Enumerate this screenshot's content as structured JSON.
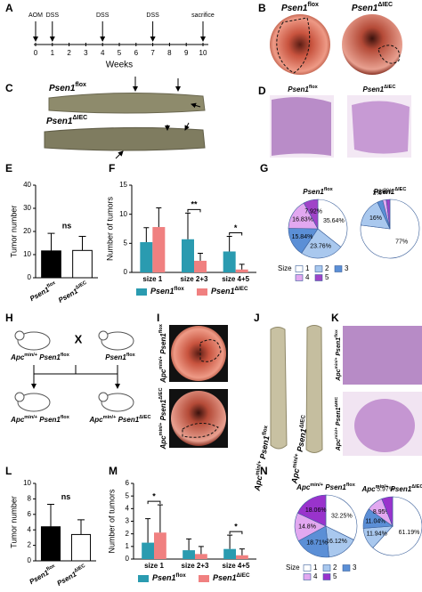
{
  "panel_labels": [
    "A",
    "B",
    "C",
    "D",
    "E",
    "F",
    "G",
    "H",
    "I",
    "J",
    "K",
    "L",
    "M",
    "N"
  ],
  "timeline": {
    "events": [
      {
        "label": "AOM",
        "week": 0
      },
      {
        "label": "DSS",
        "week": 1
      },
      {
        "label": "DSS",
        "week": 4
      },
      {
        "label": "DSS",
        "week": 7
      },
      {
        "label": "sacrifice",
        "week": 10
      }
    ],
    "ticks": [
      0,
      1,
      2,
      3,
      4,
      5,
      6,
      7,
      8,
      9,
      10
    ],
    "xlabel": "Weeks"
  },
  "panel_b": {
    "titles": [
      [
        {
          "t": "Psen1"
        },
        {
          "s": "flox"
        }
      ],
      [
        {
          "t": "Psen1"
        },
        {
          "s": "ΔIEC"
        }
      ]
    ]
  },
  "panel_c": {
    "titles": [
      [
        {
          "t": "Psen1"
        },
        {
          "s": "flox"
        }
      ],
      [
        {
          "t": "Psen1"
        },
        {
          "s": "ΔIEC"
        }
      ]
    ]
  },
  "panel_d": {
    "titles": [
      [
        {
          "t": "Psen1"
        },
        {
          "s": "flox"
        }
      ],
      [
        {
          "t": "Psen1"
        },
        {
          "s": "ΔIEC"
        }
      ]
    ]
  },
  "panel_h": {
    "parent_1": [
      {
        "t": "Apc"
      },
      {
        "s": "min/+"
      },
      {
        "t": " Psen1"
      },
      {
        "s": "flox"
      }
    ],
    "cross": "X",
    "parent_2": [
      {
        "t": "Psen1"
      },
      {
        "s": "flox"
      }
    ],
    "offspring_1": [
      {
        "t": "Apc"
      },
      {
        "s": "min/+"
      },
      {
        "t": " Psen1"
      },
      {
        "s": "flox"
      }
    ],
    "offspring_2": [
      {
        "t": "Apc"
      },
      {
        "s": "min/+"
      },
      {
        "t": " Psen1"
      },
      {
        "s": "ΔIEC"
      }
    ]
  },
  "panel_i": {
    "titles": [
      [
        {
          "t": "Apc"
        },
        {
          "s": "min/+"
        },
        {
          "t": " Psen1"
        },
        {
          "s": "flox"
        }
      ],
      [
        {
          "t": "Apc"
        },
        {
          "s": "min/+"
        },
        {
          "t": " Psen1"
        },
        {
          "s": "ΔIEC"
        }
      ]
    ]
  },
  "panel_j": {
    "titles": [
      [
        {
          "t": "Apc"
        },
        {
          "s": "min/+"
        },
        {
          "t": " Psen1"
        },
        {
          "s": "flox"
        }
      ],
      [
        {
          "t": "Apc"
        },
        {
          "s": "min/+"
        },
        {
          "t": " Psen1"
        },
        {
          "s": "ΔIEC"
        }
      ]
    ]
  },
  "panel_k": {
    "titles": [
      [
        {
          "t": "Apc"
        },
        {
          "s": "min/+"
        },
        {
          "t": " Psen1"
        },
        {
          "s": "flox"
        }
      ],
      [
        {
          "t": "Apc"
        },
        {
          "s": "min/+"
        },
        {
          "t": " Psen1"
        },
        {
          "s": "ΔIEC"
        }
      ]
    ]
  },
  "chart_data": [
    {
      "type": "bar",
      "ylabel": "Tumor number",
      "categories": [
        [
          {
            "t": "Psen1"
          },
          {
            "s": "flox"
          }
        ],
        [
          {
            "t": "Psen1"
          },
          {
            "s": "ΔIEC"
          }
        ]
      ],
      "values": [
        11.6,
        11.8
      ],
      "errors": [
        7.6,
        6.1
      ],
      "colors": [
        "#000000",
        "#ffffff"
      ],
      "ylim": [
        0,
        40
      ],
      "yticks": [
        0,
        10,
        20,
        30,
        40
      ],
      "annotations": [
        "ns"
      ]
    },
    {
      "type": "grouped_bar",
      "ylabel": "Number of tumors",
      "categories": [
        "size 1",
        "size 2+3",
        "size 4+5"
      ],
      "series": [
        {
          "name": [
            {
              "t": "Psen1"
            },
            {
              "s": "flox"
            }
          ],
          "color": "#2a9bb0",
          "values": [
            5.2,
            5.7,
            3.6
          ],
          "errors": [
            2.5,
            4.5,
            2.6
          ]
        },
        {
          "name": [
            {
              "t": "Psen1"
            },
            {
              "s": "ΔIEC"
            }
          ],
          "color": "#f08080",
          "values": [
            7.8,
            2.0,
            0.5
          ],
          "errors": [
            3.3,
            1.3,
            0.9
          ]
        }
      ],
      "ylim": [
        0,
        15
      ],
      "yticks": [
        0,
        5,
        10,
        15
      ],
      "annotations": [
        "**",
        "*"
      ]
    },
    {
      "type": "pie",
      "title": [
        {
          "t": "Psen1"
        },
        {
          "s": "flox"
        }
      ],
      "values": [
        35.64,
        23.76,
        15.84,
        16.83,
        7.92
      ],
      "value_labels": [
        "35.64%",
        "23.76%",
        "15.84%",
        "16.83%",
        "7.92%"
      ],
      "colors": [
        "#ffffff",
        "#a9c8ee",
        "#5b8fd6",
        "#e2a8f0",
        "#a044c8"
      ],
      "legend_title": "Size",
      "categories": [
        "1",
        "2",
        "3",
        "4",
        "5"
      ]
    },
    {
      "type": "pie",
      "title": [
        {
          "t": "Psen1"
        },
        {
          "s": "ΔIEC"
        }
      ],
      "values": [
        77,
        16,
        3,
        2,
        2
      ],
      "value_labels": [
        "77%",
        "16%",
        "3%",
        "2%",
        "2%"
      ],
      "colors": [
        "#ffffff",
        "#a9c8ee",
        "#5b8fd6",
        "#e2a8f0",
        "#a044c8"
      ]
    },
    {
      "type": "bar",
      "ylabel": "Tumor number",
      "categories": [
        [
          {
            "t": "Psen1"
          },
          {
            "s": "flox"
          }
        ],
        [
          {
            "t": "Psen1"
          },
          {
            "s": "ΔIEC"
          }
        ]
      ],
      "values": [
        4.4,
        3.4
      ],
      "errors": [
        2.9,
        1.9
      ],
      "colors": [
        "#000000",
        "#ffffff"
      ],
      "ylim": [
        0,
        10
      ],
      "yticks": [
        0,
        2,
        4,
        6,
        8,
        10
      ],
      "annotations": [
        "ns"
      ]
    },
    {
      "type": "grouped_bar",
      "ylabel": "Number of tumors",
      "categories": [
        "size 1",
        "size 2+3",
        "size 4+5"
      ],
      "series": [
        {
          "name": [
            {
              "t": "Psen1"
            },
            {
              "s": "flox"
            }
          ],
          "color": "#2a9bb0",
          "values": [
            1.3,
            0.7,
            0.8
          ],
          "errors": [
            1.9,
            0.9,
            1.1
          ]
        },
        {
          "name": [
            {
              "t": "Psen1"
            },
            {
              "s": "ΔIEC"
            }
          ],
          "color": "#f08080",
          "values": [
            2.1,
            0.4,
            0.3
          ],
          "errors": [
            2.2,
            0.6,
            0.5
          ]
        }
      ],
      "ylim": [
        0,
        6
      ],
      "yticks": [
        0,
        1,
        2,
        3,
        4,
        5,
        6
      ],
      "annotations": [
        "*",
        "*"
      ]
    },
    {
      "type": "pie",
      "title": [
        {
          "t": "Apc"
        },
        {
          "s": "min/+"
        },
        {
          "t": " Psen1"
        },
        {
          "s": "flox"
        }
      ],
      "values": [
        32.25,
        16.12,
        18.71,
        14.8,
        18.06
      ],
      "value_labels": [
        "32.25%",
        "16.12%",
        "18.71%",
        "14.8%",
        "18.06%"
      ],
      "colors": [
        "#ffffff",
        "#a9c8ee",
        "#5b8fd6",
        "#e2a8f0",
        "#9933cc"
      ],
      "legend_title": "Size",
      "categories": [
        "1",
        "2",
        "3",
        "4",
        "5"
      ]
    },
    {
      "type": "pie",
      "title": [
        {
          "t": "Apc"
        },
        {
          "s": "min/+"
        },
        {
          "t": " Psen1"
        },
        {
          "s": "ΔIEC"
        }
      ],
      "values": [
        61.19,
        11.94,
        11.04,
        8.95,
        5.97
      ],
      "value_labels": [
        "61.19%",
        "11.94%",
        "11.04%",
        "8.95%",
        "5.97%"
      ],
      "colors": [
        "#ffffff",
        "#a9c8ee",
        "#5b8fd6",
        "#e2a8f0",
        "#9933cc"
      ]
    }
  ]
}
